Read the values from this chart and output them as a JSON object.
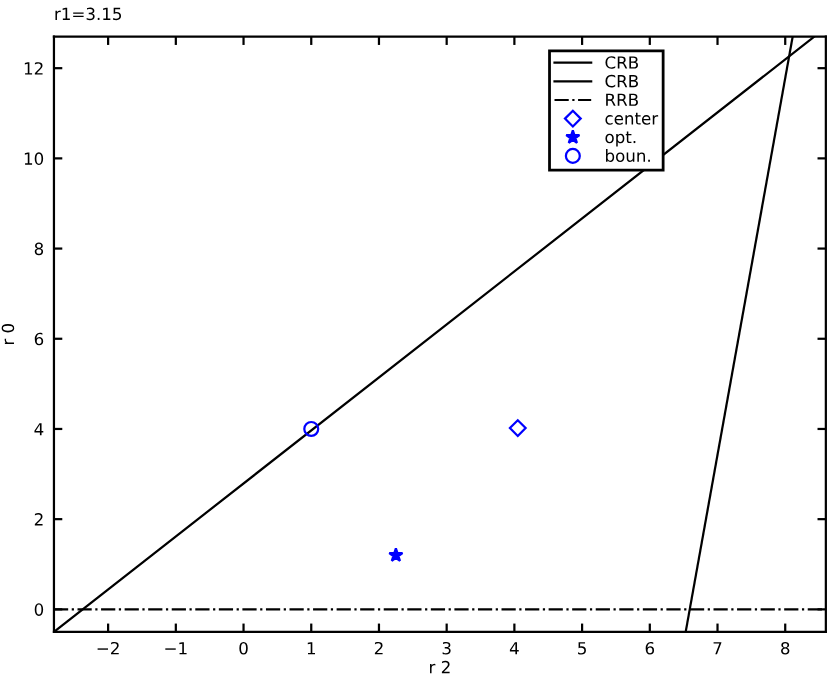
{
  "chart_data": {
    "type": "line",
    "title": "r1=3.15",
    "xlabel": "r 2",
    "ylabel": "r 0",
    "xlim": [
      -2.8,
      8.6
    ],
    "ylim": [
      -0.5,
      12.7
    ],
    "xticks": [
      {
        "value": -2,
        "label": "−2"
      },
      {
        "value": -1,
        "label": "−1"
      },
      0,
      1,
      2,
      3,
      4,
      5,
      6,
      7,
      8
    ],
    "yticks": [
      0,
      2,
      4,
      6,
      8,
      10,
      12
    ],
    "grid": false,
    "legend": "top right",
    "series": [
      {
        "name": "CRB",
        "color": "#000000",
        "line_style": "solid",
        "marker": "none",
        "x": [
          -2.8,
          8.43
        ],
        "values": [
          -0.5,
          12.7
        ]
      },
      {
        "name": "CRB",
        "color": "#000000",
        "line_style": "solid",
        "marker": "none",
        "x": [
          6.53,
          8.11
        ],
        "values": [
          -0.5,
          12.7
        ]
      },
      {
        "name": "RRB",
        "color": "#000000",
        "line_style": "dashdot",
        "marker": "none",
        "x": [
          -2.8,
          8.6
        ],
        "values": [
          0,
          0
        ]
      },
      {
        "name": "center",
        "type": "scatter",
        "color": "#0000ff",
        "marker": "diamond",
        "x": [
          4.05
        ],
        "values": [
          4.02
        ]
      },
      {
        "name": "opt.",
        "type": "scatter",
        "color": "#0000ff",
        "marker": "star",
        "x": [
          2.25
        ],
        "values": [
          1.2
        ]
      },
      {
        "name": "boun.",
        "type": "scatter",
        "color": "#0000ff",
        "marker": "circle",
        "x": [
          1
        ],
        "values": [
          4
        ]
      }
    ]
  }
}
